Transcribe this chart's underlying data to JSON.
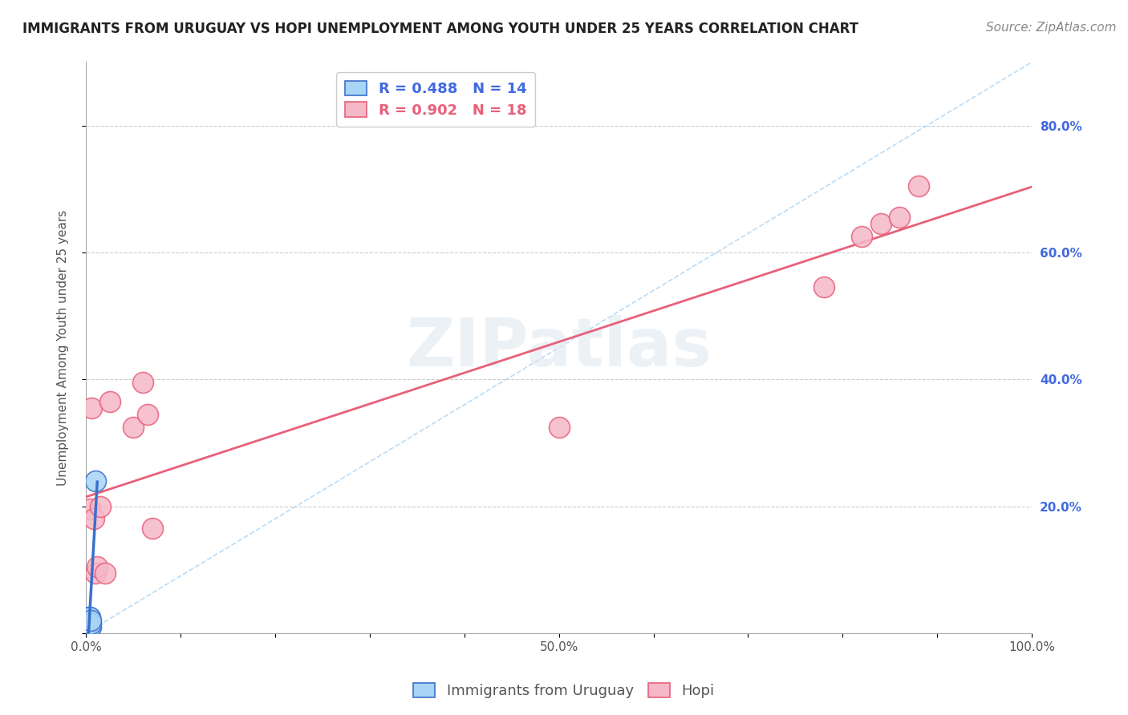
{
  "title": "IMMIGRANTS FROM URUGUAY VS HOPI UNEMPLOYMENT AMONG YOUTH UNDER 25 YEARS CORRELATION CHART",
  "source": "Source: ZipAtlas.com",
  "ylabel": "Unemployment Among Youth under 25 years",
  "xlim": [
    0,
    1.0
  ],
  "ylim": [
    0,
    0.9
  ],
  "xticks": [
    0.0,
    0.1,
    0.2,
    0.3,
    0.4,
    0.5,
    0.6,
    0.7,
    0.8,
    0.9,
    1.0
  ],
  "xticklabels": [
    "0.0%",
    "",
    "",
    "",
    "",
    "50.0%",
    "",
    "",
    "",
    "",
    "100.0%"
  ],
  "yticks": [
    0.0,
    0.2,
    0.4,
    0.6,
    0.8
  ],
  "yticklabels": [
    "",
    "20.0%",
    "40.0%",
    "60.0%",
    "80.0%"
  ],
  "blue_R": 0.488,
  "blue_N": 14,
  "pink_R": 0.902,
  "pink_N": 18,
  "blue_scatter_x": [
    0.002,
    0.002,
    0.003,
    0.003,
    0.003,
    0.003,
    0.004,
    0.004,
    0.004,
    0.004,
    0.005,
    0.005,
    0.005,
    0.01
  ],
  "blue_scatter_y": [
    0.01,
    0.02,
    0.01,
    0.015,
    0.02,
    0.025,
    0.01,
    0.015,
    0.02,
    0.025,
    0.01,
    0.015,
    0.02,
    0.24
  ],
  "pink_scatter_x": [
    0.004,
    0.006,
    0.008,
    0.01,
    0.012,
    0.015,
    0.02,
    0.025,
    0.05,
    0.06,
    0.065,
    0.07,
    0.5,
    0.78,
    0.82,
    0.84,
    0.86,
    0.88
  ],
  "pink_scatter_y": [
    0.195,
    0.355,
    0.18,
    0.095,
    0.105,
    0.2,
    0.095,
    0.365,
    0.325,
    0.395,
    0.345,
    0.165,
    0.325,
    0.545,
    0.625,
    0.645,
    0.655,
    0.705
  ],
  "blue_dot_color": "#a8d4f5",
  "pink_dot_color": "#f5b8c8",
  "blue_line_color": "#3a6fcc",
  "pink_line_color": "#e8607a",
  "diagonal_color": "#a8d4f5",
  "grid_color": "#cccccc",
  "watermark": "ZIPatlas",
  "legend_blue_label": "Immigrants from Uruguay",
  "legend_pink_label": "Hopi",
  "title_fontsize": 12,
  "axis_label_fontsize": 11,
  "tick_fontsize": 11,
  "source_fontsize": 11
}
